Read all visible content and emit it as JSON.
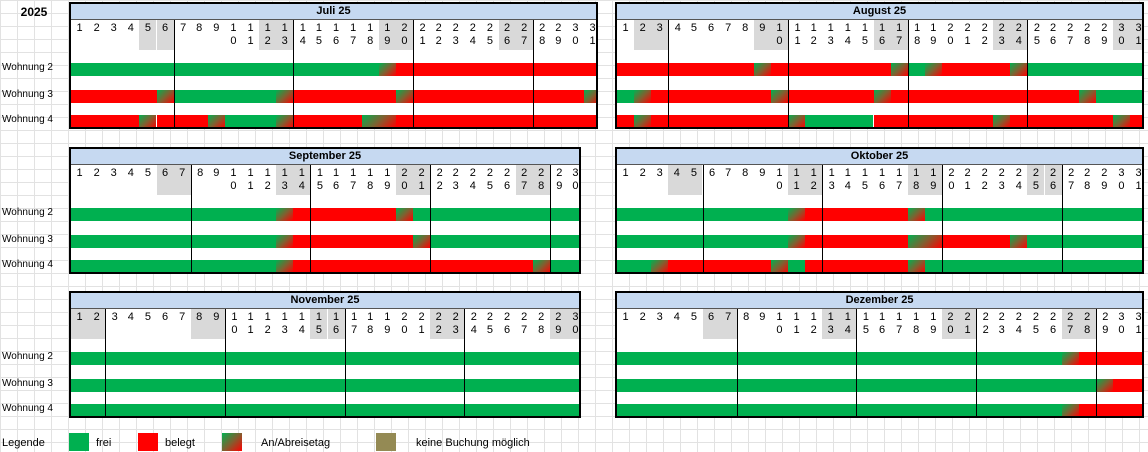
{
  "year": "2025",
  "apartments": [
    "Wohnung 2",
    "Wohnung 3",
    "Wohnung 4"
  ],
  "colors": {
    "frei": "#00b050",
    "belegt": "#ff0000",
    "keine": "#948a54"
  },
  "legend": {
    "title": "Legende",
    "items": [
      {
        "key": "frei",
        "label": "frei"
      },
      {
        "key": "belegt",
        "label": "belegt"
      },
      {
        "key": "anab",
        "label": "An/Abreisetag"
      },
      {
        "key": "keine",
        "label": "keine Buchung möglich"
      }
    ]
  },
  "months": [
    {
      "title": "Juli 25",
      "days": 31,
      "firstDow": 1,
      "rows": [
        [
          [
            "frei",
            1,
            18
          ],
          [
            "anab",
            19,
            19
          ],
          [
            "belegt",
            20,
            31
          ]
        ],
        [
          [
            "belegt",
            1,
            5
          ],
          [
            "anab",
            6,
            6
          ],
          [
            "frei",
            7,
            12
          ],
          [
            "anab",
            13,
            13
          ],
          [
            "belegt",
            14,
            19
          ],
          [
            "anab",
            20,
            20
          ],
          [
            "belegt",
            21,
            30
          ],
          [
            "anab",
            31,
            31
          ]
        ],
        [
          [
            "belegt",
            1,
            4
          ],
          [
            "anab",
            5,
            5
          ],
          [
            "belegt",
            6,
            8
          ],
          [
            "anab",
            9,
            9
          ],
          [
            "frei",
            10,
            12
          ],
          [
            "anab",
            13,
            13
          ],
          [
            "belegt",
            14,
            17
          ],
          [
            "anab",
            18,
            19
          ],
          [
            "belegt",
            20,
            31
          ]
        ]
      ]
    },
    {
      "title": "August 25",
      "days": 31,
      "firstDow": 4,
      "rows": [
        [
          [
            "belegt",
            1,
            8
          ],
          [
            "anab",
            9,
            9
          ],
          [
            "belegt",
            10,
            16
          ],
          [
            "anab",
            17,
            17
          ],
          [
            "frei",
            18,
            18
          ],
          [
            "anab",
            19,
            19
          ],
          [
            "belegt",
            20,
            23
          ],
          [
            "anab",
            24,
            24
          ],
          [
            "frei",
            25,
            31
          ]
        ],
        [
          [
            "frei",
            1,
            1
          ],
          [
            "anab",
            2,
            2
          ],
          [
            "belegt",
            3,
            9
          ],
          [
            "anab",
            10,
            10
          ],
          [
            "belegt",
            11,
            15
          ],
          [
            "anab",
            16,
            16
          ],
          [
            "belegt",
            17,
            27
          ],
          [
            "anab",
            28,
            28
          ],
          [
            "frei",
            29,
            31
          ]
        ],
        [
          [
            "belegt",
            1,
            1
          ],
          [
            "anab",
            2,
            2
          ],
          [
            "belegt",
            3,
            10
          ],
          [
            "anab",
            11,
            11
          ],
          [
            "frei",
            12,
            15
          ],
          [
            "belegt",
            16,
            22
          ],
          [
            "anab",
            23,
            23
          ],
          [
            "belegt",
            24,
            29
          ],
          [
            "anab",
            30,
            30
          ],
          [
            "belegt",
            31,
            31
          ]
        ]
      ]
    },
    {
      "title": "September 25",
      "days": 30,
      "firstDow": 0,
      "rows": [
        [
          [
            "frei",
            1,
            12
          ],
          [
            "anab",
            13,
            13
          ],
          [
            "belegt",
            14,
            19
          ],
          [
            "anab",
            20,
            20
          ],
          [
            "frei",
            21,
            30
          ]
        ],
        [
          [
            "frei",
            1,
            12
          ],
          [
            "anab",
            13,
            13
          ],
          [
            "belegt",
            14,
            20
          ],
          [
            "anab",
            21,
            21
          ],
          [
            "frei",
            22,
            30
          ]
        ],
        [
          [
            "frei",
            1,
            12
          ],
          [
            "anab",
            13,
            13
          ],
          [
            "belegt",
            14,
            27
          ],
          [
            "anab",
            28,
            28
          ],
          [
            "frei",
            29,
            30
          ]
        ]
      ]
    },
    {
      "title": "Oktober 25",
      "days": 31,
      "firstDow": 2,
      "rows": [
        [
          [
            "frei",
            1,
            10
          ],
          [
            "anab",
            11,
            11
          ],
          [
            "belegt",
            12,
            17
          ],
          [
            "anab",
            18,
            18
          ],
          [
            "frei",
            19,
            31
          ]
        ],
        [
          [
            "frei",
            1,
            10
          ],
          [
            "anab",
            11,
            11
          ],
          [
            "belegt",
            12,
            17
          ],
          [
            "anab",
            18,
            19
          ],
          [
            "belegt",
            20,
            23
          ],
          [
            "anab",
            24,
            24
          ],
          [
            "frei",
            25,
            31
          ]
        ],
        [
          [
            "frei",
            1,
            2
          ],
          [
            "anab",
            3,
            3
          ],
          [
            "belegt",
            4,
            9
          ],
          [
            "anab",
            10,
            10
          ],
          [
            "frei",
            11,
            11
          ],
          [
            "belegt",
            12,
            17
          ],
          [
            "anab",
            18,
            18
          ],
          [
            "frei",
            19,
            31
          ]
        ]
      ]
    },
    {
      "title": "November 25",
      "days": 30,
      "firstDow": 5,
      "rows": [
        [
          [
            "frei",
            1,
            30
          ]
        ],
        [
          [
            "frei",
            1,
            30
          ]
        ],
        [
          [
            "frei",
            1,
            30
          ]
        ]
      ]
    },
    {
      "title": "Dezember 25",
      "days": 31,
      "firstDow": 0,
      "rows": [
        [
          [
            "frei",
            1,
            26
          ],
          [
            "anab",
            27,
            27
          ],
          [
            "belegt",
            28,
            31
          ]
        ],
        [
          [
            "frei",
            1,
            28
          ],
          [
            "anab",
            29,
            29
          ],
          [
            "belegt",
            30,
            31
          ]
        ],
        [
          [
            "frei",
            1,
            26
          ],
          [
            "anab",
            27,
            27
          ],
          [
            "belegt",
            28,
            31
          ]
        ]
      ]
    }
  ]
}
